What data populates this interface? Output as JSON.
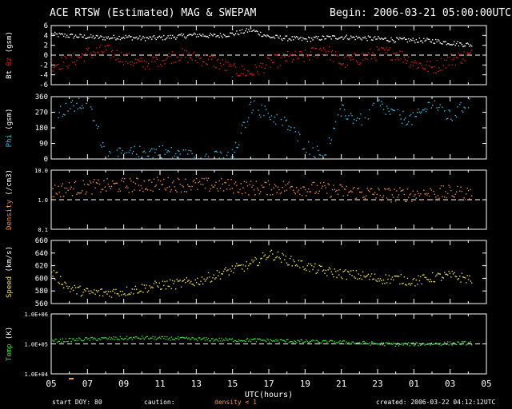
{
  "header": {
    "title": "ACE RTSW (Estimated) MAG & SWEPAM",
    "begin": "Begin: 2006-03-21 05:00:00UTC"
  },
  "footer": {
    "start_doy_label": "start DOY:",
    "start_doy_value": "80",
    "caution_label": "caution:",
    "caution_text": "density < 1",
    "created": "created: 2006-03-22 04:12:12UTC"
  },
  "colors": {
    "background": "#000000",
    "axes": "#ffffff",
    "bt": "#ffffff",
    "bz": "#e01818",
    "phi": "#33bbee",
    "density": "#f08a3c",
    "speed": "#f0e040",
    "temp": "#33dd33",
    "caution": "#ff9933"
  },
  "chart_data": [
    {
      "type": "scatter",
      "name": "mag-bt-bz",
      "ylabel_parts": [
        "Bt",
        "Bz",
        "(gsm)"
      ],
      "ylim": [
        -6,
        6
      ],
      "yticks": [
        -6,
        -4,
        -2,
        0,
        2,
        4,
        6
      ],
      "ytick_labels": [
        "-6",
        "-4",
        "-2",
        "0",
        "2",
        "4",
        "6"
      ],
      "reference_line": 0,
      "series": [
        {
          "name": "Bt",
          "color_key": "bt",
          "x": [
            0,
            1,
            2,
            3,
            4,
            5,
            6,
            7,
            8,
            9,
            10,
            11,
            12,
            13,
            14,
            15,
            16,
            17,
            18,
            19,
            20,
            21,
            22,
            23
          ],
          "y": [
            4.3,
            4.0,
            3.8,
            3.6,
            3.8,
            3.5,
            3.6,
            3.9,
            4.2,
            4.0,
            4.4,
            5.2,
            3.8,
            3.5,
            3.3,
            3.6,
            3.8,
            3.6,
            3.4,
            3.2,
            3.1,
            3.0,
            2.6,
            2.2
          ],
          "noise": 0.5
        },
        {
          "name": "Bz",
          "color_key": "bz",
          "x": [
            0,
            1,
            2,
            3,
            4,
            5,
            6,
            7,
            8,
            9,
            10,
            11,
            12,
            13,
            14,
            15,
            16,
            17,
            18,
            19,
            20,
            21,
            22,
            23
          ],
          "y": [
            -1.8,
            -1.2,
            0.5,
            1.0,
            -0.5,
            -1.8,
            -0.8,
            0.2,
            -0.5,
            -1.2,
            -3.0,
            -3.5,
            -1.5,
            -0.5,
            -0.2,
            1.5,
            -1.5,
            -0.5,
            0.5,
            0.5,
            -1.5,
            -2.5,
            -0.8,
            0.0
          ],
          "noise": 1.4
        }
      ]
    },
    {
      "type": "scatter",
      "name": "mag-phi",
      "ylabel_parts": [
        "Phi",
        "(gsm)"
      ],
      "ylim": [
        0,
        360
      ],
      "yticks": [
        0,
        90,
        180,
        270,
        360
      ],
      "ytick_labels": [
        "0",
        "90",
        "180",
        "270",
        "360"
      ],
      "series": [
        {
          "name": "Phi",
          "color_key": "phi",
          "x": [
            0,
            1,
            2,
            3,
            3.5,
            4,
            5,
            6,
            7,
            8,
            9,
            10,
            11,
            12,
            13,
            14,
            15,
            16,
            17,
            18,
            19,
            20,
            21,
            22,
            23
          ],
          "y": [
            260,
            300,
            330,
            30,
            20,
            35,
            40,
            50,
            25,
            15,
            10,
            20,
            310,
            260,
            200,
            80,
            20,
            280,
            220,
            320,
            250,
            230,
            330,
            240,
            330
          ],
          "noise": 40
        }
      ]
    },
    {
      "type": "scatter",
      "name": "swepam-density",
      "ylabel_parts": [
        "Density",
        "(/cm3)"
      ],
      "yscale": "log",
      "ylim": [
        0.1,
        10.0
      ],
      "yticks": [
        0.1,
        1.0,
        10.0
      ],
      "ytick_labels": [
        "0.1",
        "1.0",
        "10.0"
      ],
      "reference_line": 1.0,
      "series": [
        {
          "name": "Density",
          "color_key": "density",
          "x": [
            0,
            1,
            2,
            3,
            4,
            5,
            6,
            7,
            8,
            9,
            10,
            11,
            12,
            13,
            14,
            15,
            16,
            17,
            18,
            19,
            20,
            21,
            22,
            23
          ],
          "y": [
            2.0,
            2.5,
            2.8,
            3.0,
            3.2,
            3.3,
            3.5,
            3.4,
            3.3,
            3.2,
            3.0,
            2.6,
            2.6,
            2.8,
            2.5,
            2.3,
            2.0,
            1.8,
            1.6,
            1.5,
            1.6,
            1.7,
            1.8,
            1.7
          ],
          "noise": 0.25
        }
      ]
    },
    {
      "type": "scatter",
      "name": "swepam-speed",
      "ylabel_parts": [
        "Speed",
        "(km/s)"
      ],
      "ylim": [
        560,
        660
      ],
      "yticks": [
        560,
        580,
        600,
        620,
        640,
        660
      ],
      "ytick_labels": [
        "560",
        "580",
        "600",
        "620",
        "640",
        "660"
      ],
      "series": [
        {
          "name": "Speed",
          "color_key": "speed",
          "x": [
            0,
            1,
            2,
            3,
            4,
            5,
            6,
            7,
            8,
            9,
            10,
            11,
            12,
            13,
            14,
            15,
            16,
            17,
            18,
            19,
            20,
            21,
            22,
            23
          ],
          "y": [
            610,
            585,
            578,
            578,
            580,
            585,
            590,
            592,
            596,
            605,
            615,
            622,
            640,
            630,
            620,
            612,
            608,
            605,
            600,
            600,
            596,
            602,
            605,
            600
          ],
          "noise": 8
        }
      ]
    },
    {
      "type": "scatter",
      "name": "swepam-temp",
      "ylabel_parts": [
        "Temp",
        "(K)"
      ],
      "yscale": "log",
      "ylim": [
        10000,
        1000000
      ],
      "yticks": [
        10000,
        100000,
        1000000
      ],
      "ytick_labels": [
        "1.0E+04",
        "1.0E+05",
        "1.0E+06"
      ],
      "reference_line": 100000,
      "series": [
        {
          "name": "Temp",
          "color_key": "temp",
          "x": [
            0,
            1,
            2,
            3,
            4,
            5,
            6,
            7,
            8,
            9,
            10,
            11,
            12,
            13,
            14,
            15,
            16,
            17,
            18,
            19,
            20,
            21,
            22,
            23
          ],
          "y": [
            130000,
            140000,
            150000,
            155000,
            160000,
            165000,
            160000,
            155000,
            150000,
            145000,
            140000,
            140000,
            135000,
            130000,
            125000,
            120000,
            118000,
            112000,
            105000,
            100000,
            102000,
            105000,
            108000,
            110000
          ],
          "noise": 0.06
        }
      ]
    }
  ],
  "xaxis": {
    "xlabel": "UTC(hours)",
    "xlim": [
      0,
      24
    ],
    "tick_labels": [
      "05",
      "07",
      "09",
      "11",
      "13",
      "15",
      "17",
      "19",
      "21",
      "23",
      "01",
      "03",
      "05"
    ]
  }
}
